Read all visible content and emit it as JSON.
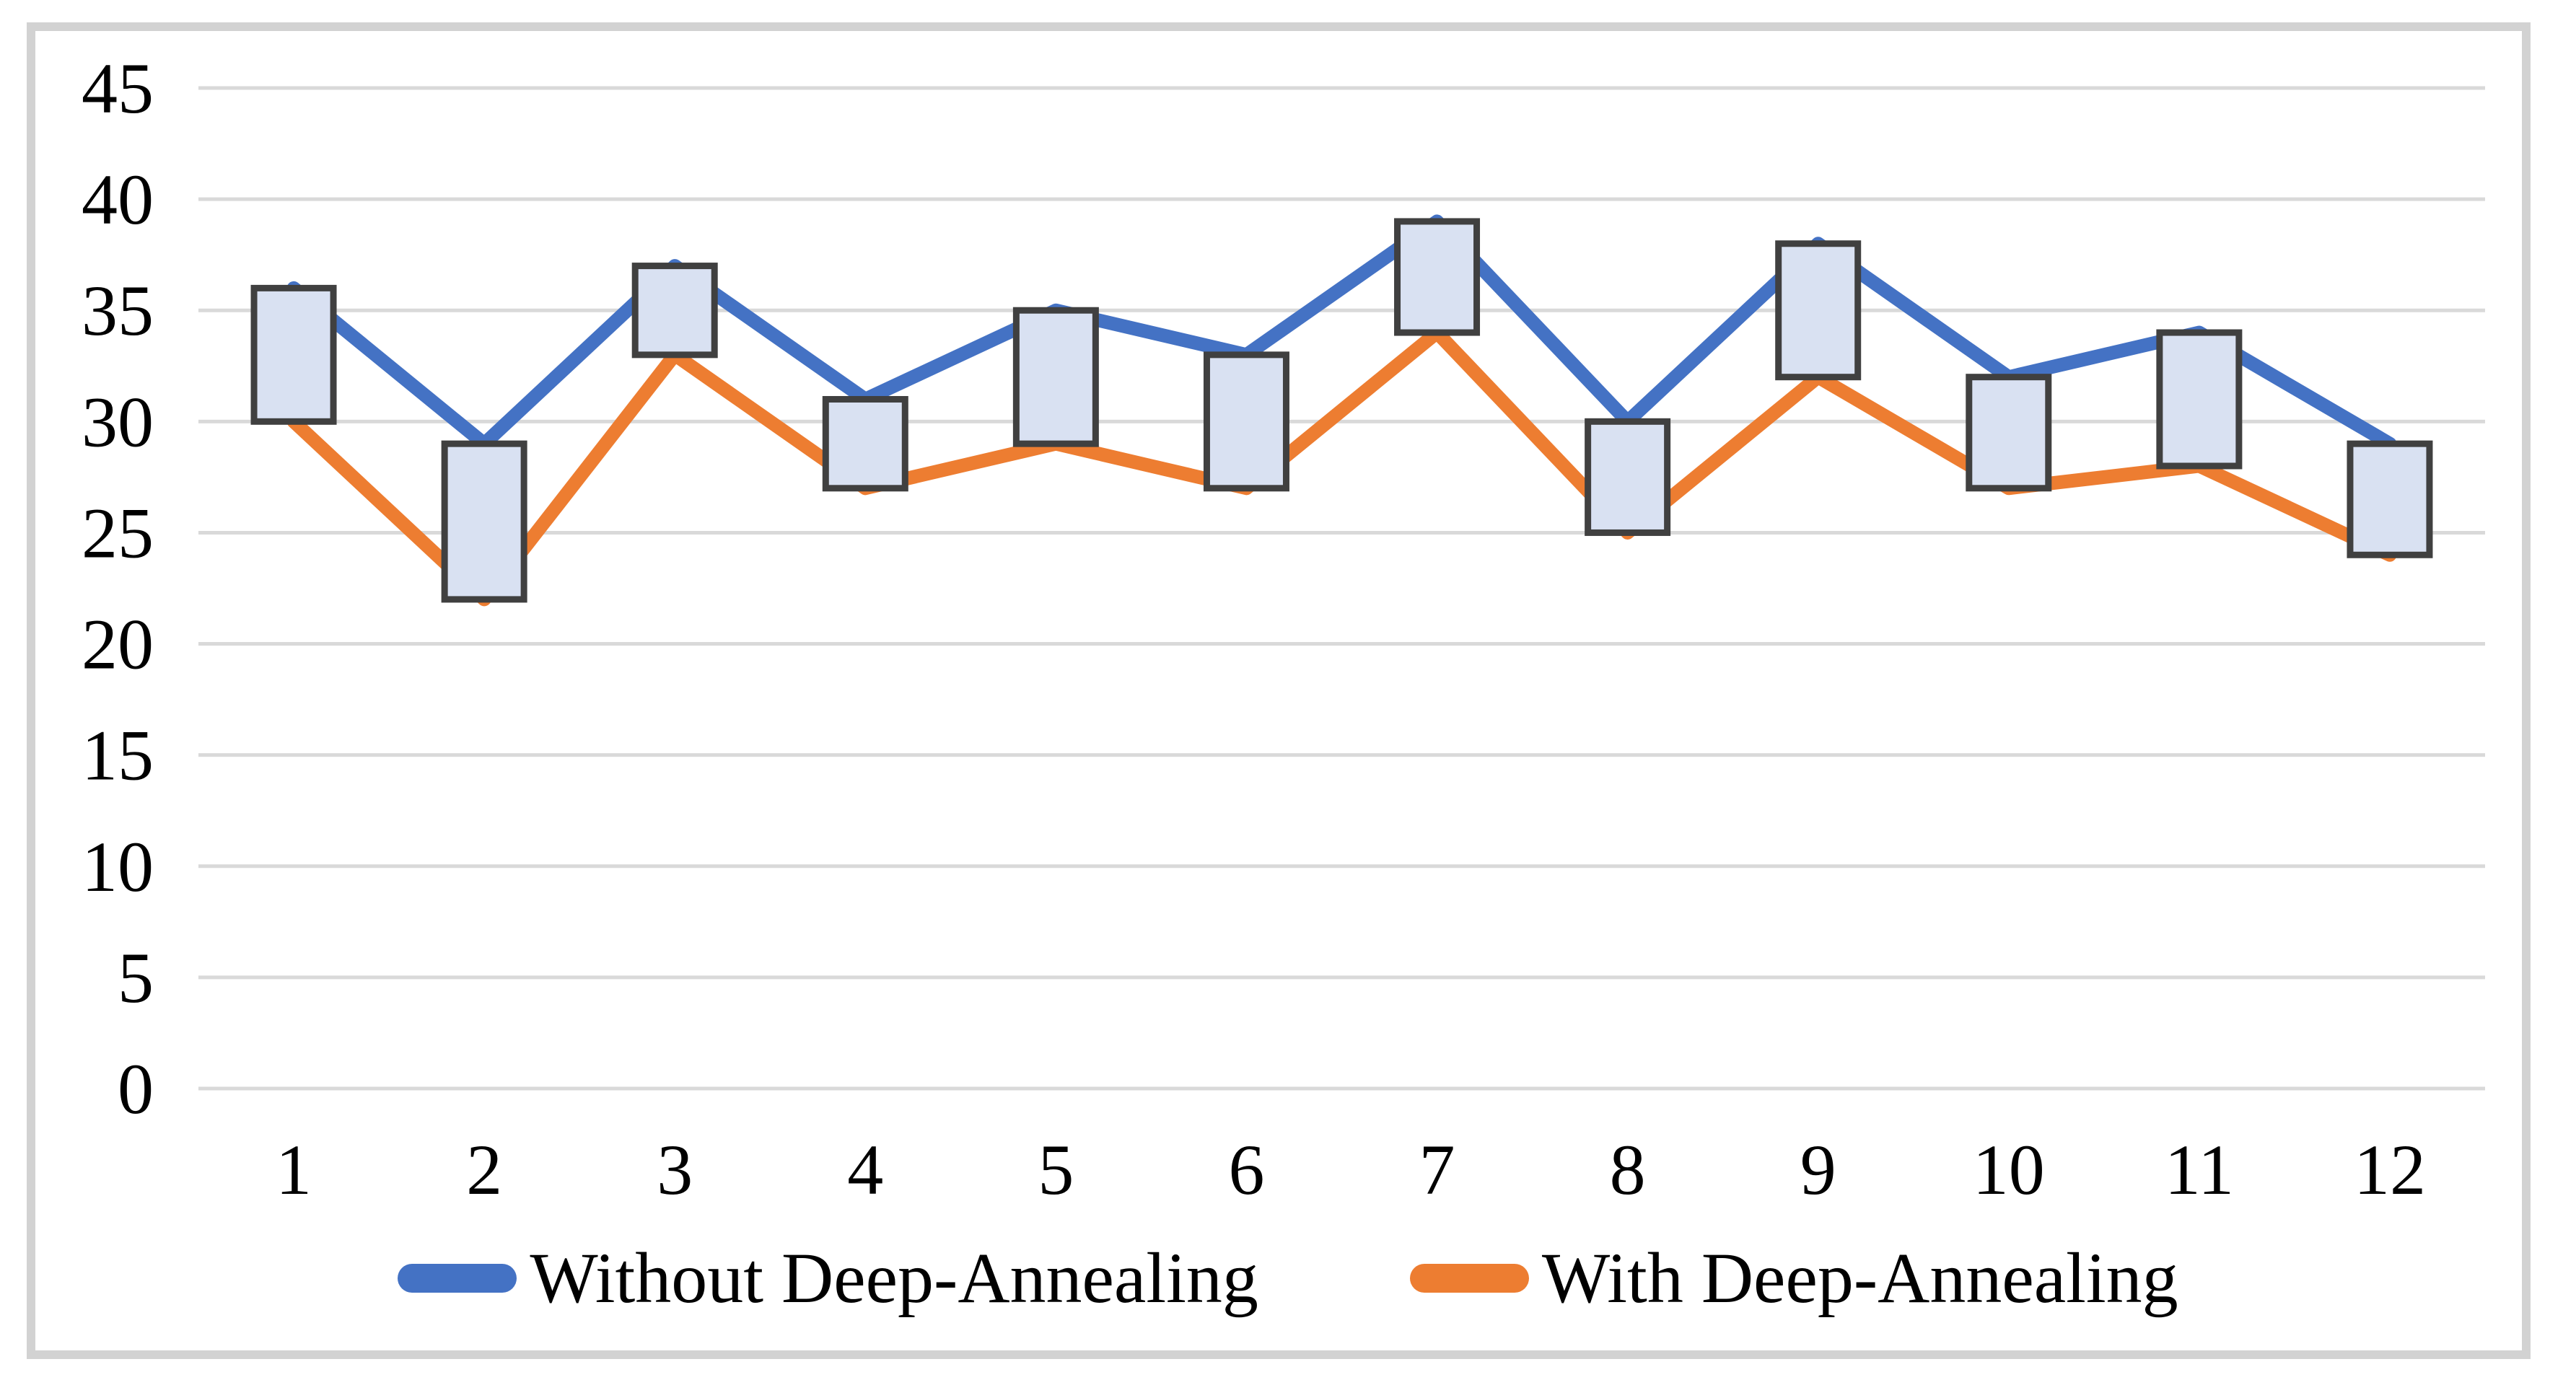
{
  "chart_data": {
    "type": "line",
    "title": "",
    "xlabel": "",
    "ylabel": "",
    "categories": [
      "1",
      "2",
      "3",
      "4",
      "5",
      "6",
      "7",
      "8",
      "9",
      "10",
      "11",
      "12"
    ],
    "series": [
      {
        "name": "Without Deep-Annealing",
        "color": "#4472C4",
        "values": [
          36,
          29,
          37,
          31,
          35,
          33,
          39,
          30,
          38,
          32,
          34,
          29
        ]
      },
      {
        "name": "With Deep-Annealing",
        "color": "#ED7D31",
        "values": [
          30,
          22,
          33,
          27,
          29,
          27,
          34,
          25,
          32,
          27,
          28,
          24
        ]
      }
    ],
    "high_low_boxes": {
      "enabled": true,
      "fill": "#D9E1F2",
      "border": "#404040"
    },
    "ylim": [
      0,
      45
    ],
    "ytick_step": 5,
    "yticks": [
      "0",
      "5",
      "10",
      "15",
      "20",
      "25",
      "30",
      "35",
      "40",
      "45"
    ],
    "grid": "horizontal",
    "gridline_color": "#D9D9D9",
    "frame_color": "#D2D2D2",
    "tick_label_color": "#000000",
    "legend_position": "bottom"
  }
}
